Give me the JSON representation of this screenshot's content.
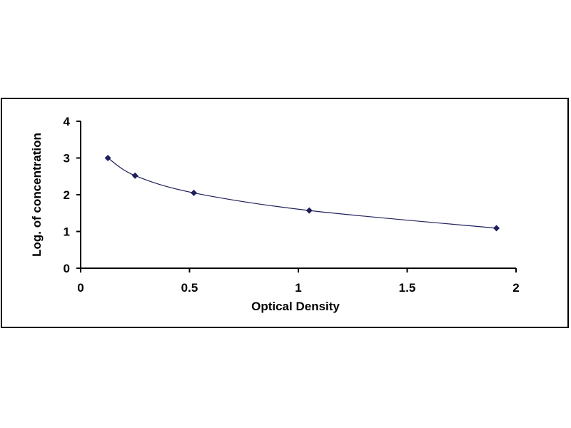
{
  "chart_data": {
    "type": "scatter",
    "title": "",
    "xlabel": "Optical Density",
    "ylabel": "Log. of concentration",
    "xlim": [
      0,
      2
    ],
    "ylim": [
      0,
      4
    ],
    "x_ticks": [
      "0",
      "0.5",
      "1",
      "1.5",
      "2"
    ],
    "y_ticks": [
      "0",
      "1",
      "2",
      "3",
      "4"
    ],
    "grid": false,
    "legend": "none",
    "series": [
      {
        "x": [
          0.125,
          0.25,
          0.52,
          1.05,
          1.91
        ],
        "y": [
          3.0,
          2.52,
          2.05,
          1.57,
          1.09
        ],
        "marker": "diamond",
        "line": "smooth"
      }
    ],
    "colors": {
      "marker": "#1f1f5c",
      "line": "#1f1f5c",
      "axis": "#000000",
      "frame": "#000000"
    }
  }
}
